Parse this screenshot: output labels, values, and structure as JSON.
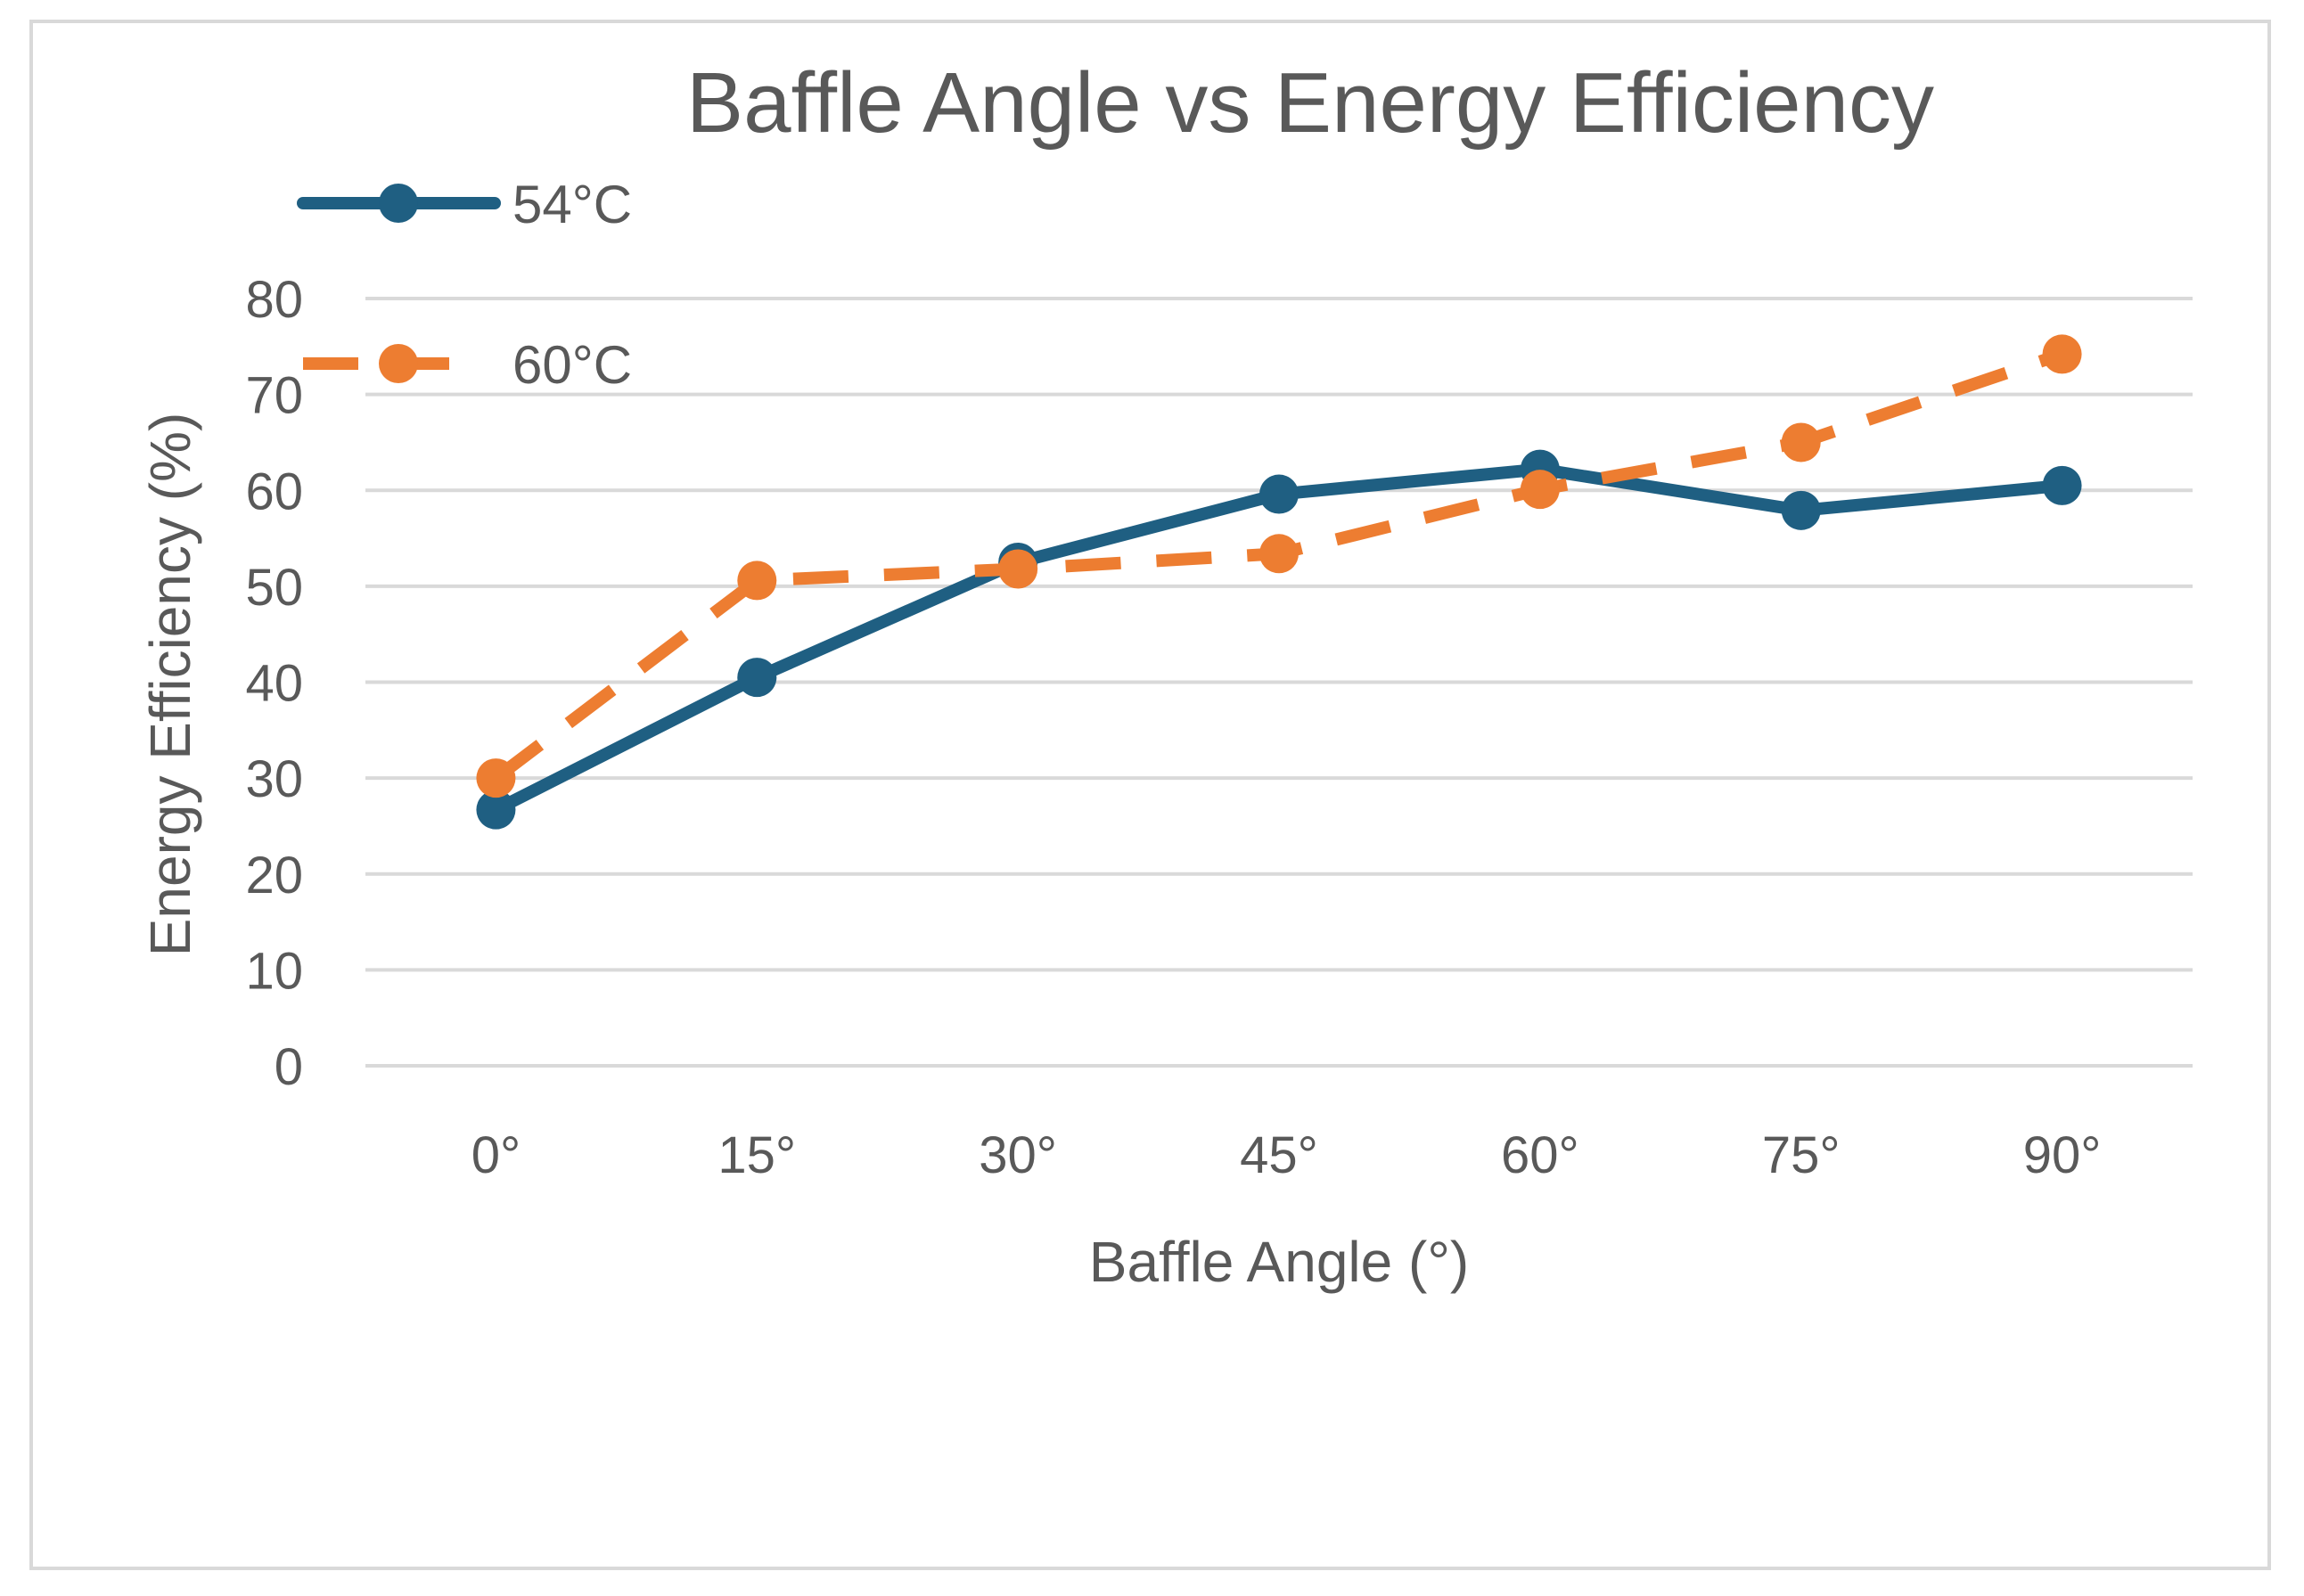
{
  "chart_data": {
    "type": "line",
    "title": "Baffle Angle vs Energy Efficiency",
    "xlabel": "Baffle Angle (°)",
    "ylabel": "Energy Efficiency  (%)",
    "categories": [
      "0°",
      "15°",
      "30°",
      "45°",
      "60°",
      "75°",
      "90°"
    ],
    "ylim": [
      0,
      80
    ],
    "yticks": [
      "0",
      "10",
      "20",
      "30",
      "40",
      "50",
      "60",
      "70",
      "80"
    ],
    "grid": true,
    "legend_position": "top-left",
    "series": [
      {
        "name": "54°C",
        "color": "#1f5f82",
        "line_style": "solid",
        "values": [
          26.7,
          40.5,
          52.5,
          59.6,
          62.2,
          57.9,
          60.5
        ]
      },
      {
        "name": "60°C",
        "color": "#ed7d31",
        "line_style": "dashed",
        "values": [
          30.0,
          50.6,
          51.8,
          53.4,
          60.1,
          65.0,
          74.2
        ]
      }
    ]
  }
}
